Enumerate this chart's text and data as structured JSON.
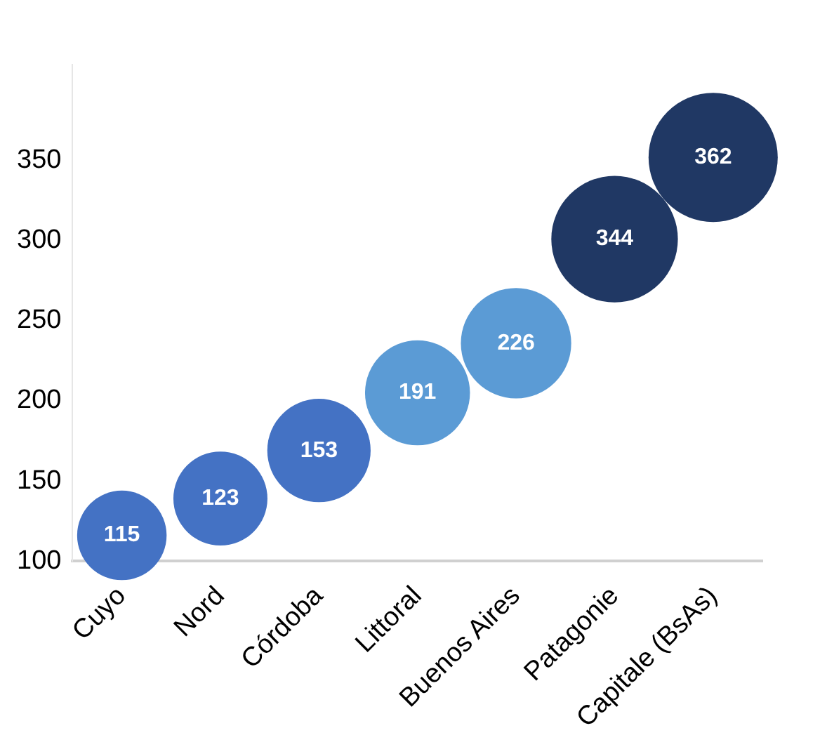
{
  "chart_data": {
    "type": "bubble",
    "categories": [
      "Cuyo",
      "Nord",
      "Córdoba",
      "Littoral",
      "Buenos Aires",
      "Patagonie",
      "Capitale (BsAs)"
    ],
    "values": [
      116,
      139,
      169,
      205,
      236,
      301,
      352
    ],
    "sizes": [
      0.48,
      0.53,
      0.64,
      0.66,
      0.73,
      0.96,
      1
    ],
    "colors": [
      "#4472c4",
      "#4472c4",
      "#4472c4",
      "#5b9bd5",
      "#5b9bd5",
      "#203864",
      "#203864"
    ],
    "annotations": [
      {
        "text": "115",
        "x": "Cuyo",
        "y": 116
      },
      {
        "text": "123",
        "x": "Nord",
        "y": 139
      },
      {
        "text": "153",
        "x": "Córdoba",
        "y": 169
      },
      {
        "text": "191",
        "x": "Littoral",
        "y": 205
      },
      {
        "text": "226",
        "x": "Buenos Aires",
        "y": 236
      },
      {
        "text": "344",
        "x": "Patagonie",
        "y": 301
      },
      {
        "text": "362",
        "x": "Capitale (BsAs)",
        "y": 352
      }
    ],
    "ylim": [
      100,
      410
    ],
    "yticks": [
      100,
      150,
      200,
      250,
      300,
      350
    ]
  }
}
